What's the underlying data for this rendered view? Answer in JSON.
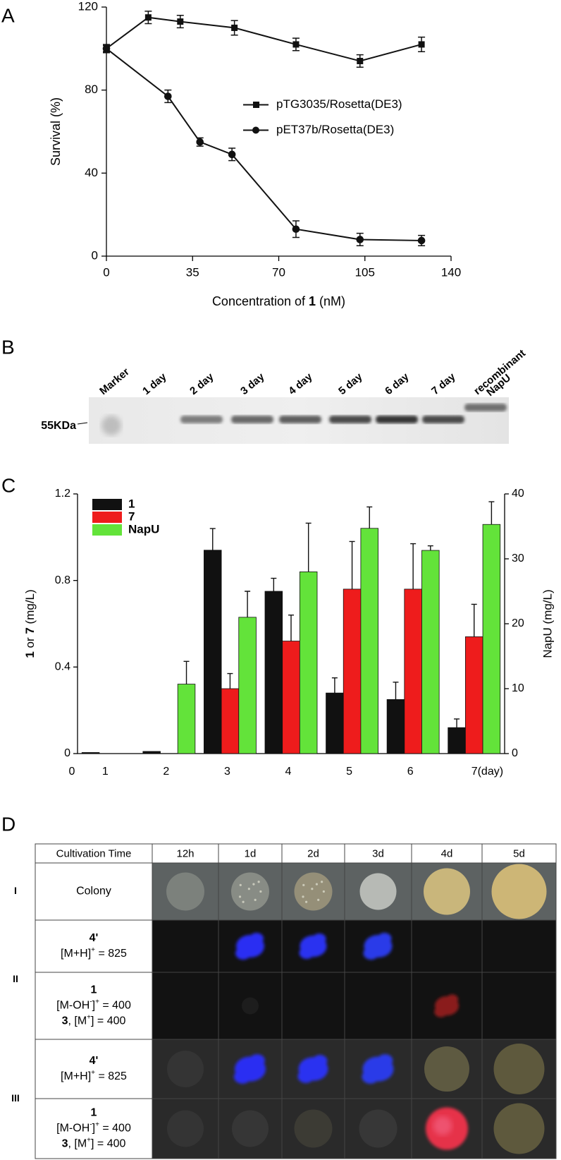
{
  "chart_data": [
    {
      "panel": "A",
      "type": "line",
      "ylabel": "Survival (%)",
      "xlabel": [
        {
          "t": "Concentration of "
        },
        {
          "t": "1",
          "bold": true
        },
        {
          "t": " (nM)"
        }
      ],
      "xlim": [
        0,
        140
      ],
      "ylim": [
        0,
        120
      ],
      "xticks": [
        0,
        35,
        70,
        105,
        140
      ],
      "yticks": [
        0,
        40,
        80,
        120
      ],
      "legend": "center right",
      "series": [
        {
          "name": "pTG3035/Rosetta(DE3)",
          "color": "#111111",
          "marker": "square",
          "x": [
            0,
            17,
            30,
            52,
            77,
            103,
            128
          ],
          "values": [
            100,
            115,
            113,
            110,
            102,
            94,
            102
          ],
          "errors": [
            2,
            3,
            3,
            3.5,
            3,
            3,
            3.5
          ]
        },
        {
          "name": "pET37b/Rosetta(DE3)",
          "color": "#111111",
          "marker": "circle",
          "x": [
            0,
            25,
            38,
            51,
            77,
            103,
            128
          ],
          "values": [
            100,
            77,
            55,
            49,
            13,
            8,
            7.5
          ],
          "errors": [
            1.5,
            3,
            2,
            3,
            4,
            3,
            2.5
          ]
        }
      ]
    },
    {
      "panel": "C",
      "type": "bar",
      "ylabel": [
        {
          "t": "1",
          "bold": true
        },
        {
          "t": " or "
        },
        {
          "t": "7",
          "bold": true
        },
        {
          "t": " (mg/L)"
        }
      ],
      "y2label": "NapU (mg/L)",
      "origin_label": "0",
      "categories": [
        "1",
        "2",
        "3",
        "4",
        "5",
        "6",
        "7(day)"
      ],
      "ylim": [
        0,
        1.2
      ],
      "yticks": [
        0,
        0.4,
        0.8,
        1.2
      ],
      "y2lim": [
        0,
        40
      ],
      "y2ticks": [
        0,
        10,
        20,
        30,
        40
      ],
      "legend": "upper left",
      "series": [
        {
          "name": "1",
          "color": "#111111",
          "values": [
            0.005,
            0.01,
            0.94,
            0.75,
            0.28,
            0.25,
            0.12
          ],
          "errors": [
            null,
            null,
            0.1,
            0.06,
            0.07,
            0.08,
            0.04
          ]
        },
        {
          "name": "7",
          "color": "#ee1c1c",
          "values": [
            0,
            0,
            0.3,
            0.52,
            0.76,
            0.76,
            0.54
          ],
          "errors": [
            null,
            null,
            0.07,
            0.12,
            0.22,
            0.21,
            0.15
          ]
        },
        {
          "name": "NapU",
          "color": "#63e33a",
          "axis": "y2",
          "values": [
            0,
            10.7,
            21,
            28,
            34.7,
            31.3,
            35.3
          ],
          "errors": [
            null,
            3.5,
            4,
            7.5,
            3.3,
            0.7,
            3.5
          ]
        }
      ]
    }
  ],
  "gel": {
    "panel": "B",
    "marker_label": "55KDa",
    "lanes": [
      [
        "Marker"
      ],
      [
        "1 day"
      ],
      [
        "2 day"
      ],
      [
        "3 day"
      ],
      [
        "4 day"
      ],
      [
        "5 day"
      ],
      [
        "6 day"
      ],
      [
        "7 day"
      ],
      [
        "recombinant",
        "NapU"
      ]
    ]
  },
  "table": {
    "panel": "D",
    "groups": [
      "I",
      "II",
      "III"
    ],
    "header": [
      "Cultivation Time",
      "12h",
      "1d",
      "2d",
      "3d",
      "4d",
      "5d"
    ],
    "rows": [
      [
        [
          {
            "t": "Colony"
          }
        ]
      ],
      [
        [
          {
            "t": "4'",
            "bold": true
          }
        ],
        [
          {
            "t": "[M+H]"
          },
          {
            "t": "+",
            "sup": true
          },
          {
            "t": " = 825"
          }
        ]
      ],
      [
        [
          {
            "t": "1",
            "bold": true
          }
        ],
        [
          {
            "t": "[M-OH"
          },
          {
            "t": "-",
            "sup": true
          },
          {
            "t": "]"
          },
          {
            "t": "+",
            "sup": true
          },
          {
            "t": " = 400"
          }
        ],
        [
          {
            "t": "3",
            "bold": true
          },
          {
            "t": ", [M"
          },
          {
            "t": "+",
            "sup": true
          },
          {
            "t": "] = 400"
          }
        ]
      ],
      [
        [
          {
            "t": "4'",
            "bold": true
          }
        ],
        [
          {
            "t": "[M+H]"
          },
          {
            "t": "+",
            "sup": true
          },
          {
            "t": " = 825"
          }
        ]
      ],
      [
        [
          {
            "t": "1",
            "bold": true
          }
        ],
        [
          {
            "t": "[M-OH"
          },
          {
            "t": "-",
            "sup": true
          },
          {
            "t": "]"
          },
          {
            "t": "+",
            "sup": true
          },
          {
            "t": " = 400"
          }
        ],
        [
          {
            "t": "3",
            "bold": true
          },
          {
            "t": ", [M"
          },
          {
            "t": "+",
            "sup": true
          },
          {
            "t": "] = 400"
          }
        ]
      ]
    ]
  }
}
